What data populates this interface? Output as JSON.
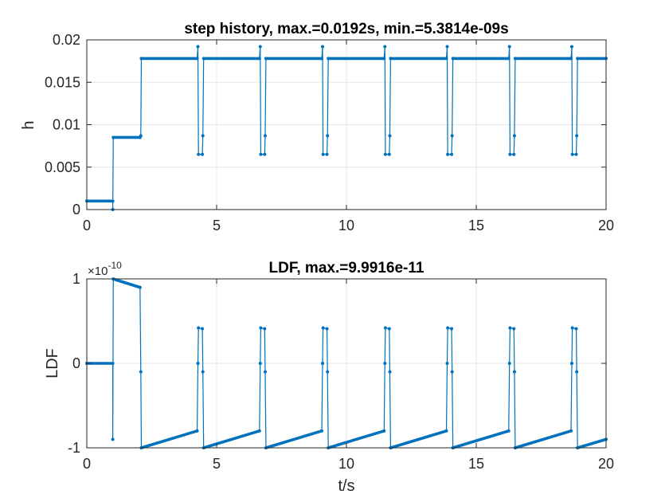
{
  "chart_data": [
    {
      "type": "line",
      "title": "step history, max.=0.0192s, min.=5.3814e-09s",
      "xlabel": "",
      "ylabel": "h",
      "xlim": [
        0,
        20
      ],
      "ylim": [
        0,
        0.02
      ],
      "xticks": [
        "0",
        "5",
        "10",
        "15",
        "20"
      ],
      "xtick_values": [
        0,
        5,
        10,
        15,
        20
      ],
      "yticks": [
        "0",
        "0.005",
        "0.01",
        "0.015",
        "0.02"
      ],
      "ytick_values": [
        0,
        0.005,
        0.01,
        0.015,
        0.02
      ],
      "grid": true,
      "color": "#0072BD",
      "series": [
        {
          "x": [
            0,
            1.0,
            1.0,
            1.02,
            1.04,
            2.05,
            2.08,
            2.1,
            4.25,
            4.28,
            4.3,
            4.45,
            4.47,
            4.5,
            6.65,
            6.68,
            6.7,
            6.85,
            6.87,
            6.9,
            9.05,
            9.08,
            9.1,
            9.25,
            9.27,
            9.3,
            11.45,
            11.48,
            11.5,
            11.65,
            11.67,
            11.7,
            13.85,
            13.88,
            13.9,
            14.05,
            14.07,
            14.1,
            16.25,
            16.28,
            16.3,
            16.45,
            16.47,
            16.5,
            18.65,
            18.68,
            18.7,
            18.85,
            18.87,
            18.9,
            20.0
          ],
          "y": [
            0.001,
            0.001,
            0.0,
            0.0085,
            0.0085,
            0.0085,
            0.0087,
            0.0178,
            0.0178,
            0.0192,
            0.0065,
            0.0065,
            0.0087,
            0.0178,
            0.0178,
            0.0192,
            0.0065,
            0.0065,
            0.0087,
            0.0178,
            0.0178,
            0.0192,
            0.0065,
            0.0065,
            0.0087,
            0.0178,
            0.0178,
            0.0192,
            0.0065,
            0.0065,
            0.0087,
            0.0178,
            0.0178,
            0.0192,
            0.0065,
            0.0065,
            0.0087,
            0.0178,
            0.0178,
            0.0192,
            0.0065,
            0.0065,
            0.0087,
            0.0178,
            0.0178,
            0.0192,
            0.0065,
            0.0065,
            0.0087,
            0.0178,
            0.0178
          ]
        }
      ]
    },
    {
      "type": "line",
      "title": "LDF, max.=9.9916e-11",
      "xlabel": "t/s",
      "ylabel": "LDF",
      "xlim": [
        0,
        20
      ],
      "ylim": [
        -1e-10,
        1e-10
      ],
      "exponent_label": "×10",
      "exponent_power": "-10",
      "xticks": [
        "0",
        "5",
        "10",
        "15",
        "20"
      ],
      "xtick_values": [
        0,
        5,
        10,
        15,
        20
      ],
      "yticks": [
        "-1",
        "0",
        "1"
      ],
      "ytick_values": [
        -1e-10,
        0,
        1e-10
      ],
      "grid": true,
      "color": "#0072BD",
      "series": [
        {
          "x": [
            0,
            1.0,
            1.0,
            1.02,
            2.05,
            2.08,
            2.1,
            4.25,
            4.28,
            4.3,
            4.45,
            4.47,
            4.5,
            6.65,
            6.68,
            6.7,
            6.85,
            6.87,
            6.9,
            9.05,
            9.08,
            9.1,
            9.25,
            9.27,
            9.3,
            11.45,
            11.48,
            11.5,
            11.65,
            11.67,
            11.7,
            13.85,
            13.88,
            13.9,
            14.05,
            14.07,
            14.1,
            16.25,
            16.28,
            16.3,
            16.45,
            16.47,
            16.5,
            18.65,
            18.68,
            18.7,
            18.85,
            18.87,
            18.9,
            20.0
          ],
          "y": [
            0,
            0,
            -9e-11,
            9.99e-11,
            9e-11,
            -1e-11,
            -1e-10,
            -8e-11,
            0,
            4.2e-11,
            4.1e-11,
            -1e-11,
            -1e-10,
            -8e-11,
            0,
            4.2e-11,
            4.1e-11,
            -1e-11,
            -1e-10,
            -8e-11,
            0,
            4.2e-11,
            4.1e-11,
            -1e-11,
            -1e-10,
            -8e-11,
            0,
            4.2e-11,
            4.1e-11,
            -1e-11,
            -1e-10,
            -8e-11,
            0,
            4.2e-11,
            4.1e-11,
            -1e-11,
            -1e-10,
            -8e-11,
            0,
            4.2e-11,
            4.1e-11,
            -1e-11,
            -1e-10,
            -8e-11,
            0,
            4.2e-11,
            4.1e-11,
            -1e-11,
            -1e-10,
            -9e-11
          ]
        }
      ]
    }
  ]
}
